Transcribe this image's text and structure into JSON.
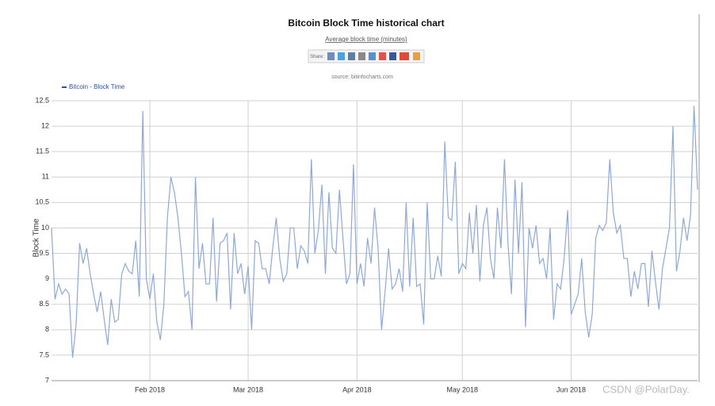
{
  "chart_data": {
    "type": "line",
    "title": "Bitcoin Block Time historical chart",
    "subtitle": "Average block time (minutes)",
    "share_label": "Share:",
    "source": "source: bitinfocharts.com",
    "ylabel": "Block Time",
    "watermark": "CSDN @PolarDay.",
    "categories": [
      null,
      null,
      null,
      null,
      null,
      null,
      null,
      null,
      null,
      null,
      null,
      null,
      null,
      null,
      null,
      null,
      null,
      null,
      null,
      null,
      null,
      null,
      null,
      null,
      null,
      null,
      null,
      null,
      "Feb 2018",
      null,
      null,
      null,
      null,
      null,
      null,
      null,
      null,
      null,
      null,
      null,
      null,
      null,
      null,
      null,
      null,
      null,
      null,
      null,
      null,
      null,
      null,
      null,
      null,
      null,
      null,
      null,
      "Mar 2018",
      null,
      null,
      null,
      null,
      null,
      null,
      null,
      null,
      null,
      null,
      null,
      null,
      null,
      null,
      null,
      null,
      null,
      null,
      null,
      null,
      null,
      null,
      null,
      null,
      null,
      null,
      null,
      null,
      null,
      null,
      "Apr 2018",
      null,
      null,
      null,
      null,
      null,
      null,
      null,
      null,
      null,
      null,
      null,
      null,
      null,
      null,
      null,
      null,
      null,
      null,
      null,
      null,
      null,
      null,
      null,
      null,
      null,
      null,
      null,
      null,
      null,
      "May 2018",
      null,
      null,
      null,
      null,
      null,
      null,
      null,
      null,
      null,
      null,
      null,
      null,
      null,
      null,
      null,
      null,
      null,
      null,
      null,
      null,
      null,
      null,
      null,
      null,
      null,
      null,
      null,
      null,
      null,
      null,
      "Jun 2018",
      null,
      null,
      null,
      null,
      null,
      null,
      null,
      null,
      null,
      null,
      null,
      null,
      null,
      null,
      null,
      null,
      null,
      null,
      null,
      null,
      null,
      null,
      null,
      null,
      null,
      null,
      null,
      null,
      null,
      null,
      null,
      null,
      null,
      null,
      null,
      null
    ],
    "series": [
      {
        "name": "Bitcoin - Block Time",
        "color": "#8fa8d6",
        "values": [
          10.0,
          8.6,
          8.9,
          8.7,
          8.8,
          8.7,
          7.45,
          8.1,
          9.7,
          9.3,
          9.6,
          9.1,
          8.7,
          8.35,
          8.75,
          8.2,
          7.7,
          8.6,
          8.15,
          8.2,
          9.1,
          9.3,
          9.15,
          9.1,
          9.75,
          8.65,
          12.3,
          9.0,
          8.6,
          9.1,
          8.15,
          7.8,
          8.5,
          10.2,
          11.0,
          10.7,
          10.2,
          9.5,
          8.65,
          8.75,
          8.0,
          11.0,
          9.2,
          9.7,
          8.9,
          8.9,
          10.2,
          8.55,
          9.7,
          9.75,
          9.9,
          8.4,
          9.9,
          9.1,
          9.3,
          8.7,
          9.25,
          8.0,
          9.75,
          9.7,
          9.2,
          9.2,
          8.9,
          9.6,
          10.2,
          9.4,
          8.95,
          9.1,
          10.0,
          10.0,
          9.2,
          9.65,
          9.55,
          9.3,
          11.35,
          9.5,
          9.95,
          10.85,
          9.1,
          10.7,
          9.6,
          9.5,
          10.75,
          9.8,
          8.9,
          9.1,
          11.25,
          8.9,
          9.3,
          8.85,
          9.8,
          9.3,
          10.4,
          9.6,
          8.0,
          8.75,
          9.6,
          8.8,
          8.9,
          9.2,
          8.75,
          10.5,
          8.85,
          10.2,
          8.85,
          8.9,
          8.1,
          10.5,
          9.0,
          9.0,
          9.45,
          9.05,
          11.7,
          10.2,
          10.15,
          11.3,
          9.1,
          9.3,
          9.2,
          10.3,
          9.5,
          10.45,
          8.95,
          10.05,
          10.4,
          9.4,
          9.0,
          10.4,
          9.6,
          11.35,
          9.7,
          8.7,
          10.95,
          9.5,
          10.9,
          8.05,
          10.0,
          9.6,
          10.05,
          9.3,
          9.4,
          9.0,
          10.0,
          8.2,
          8.9,
          8.8,
          9.4,
          10.35,
          8.3,
          8.5,
          8.7,
          9.4,
          8.35,
          7.85,
          8.3,
          9.8,
          10.05,
          9.95,
          10.1,
          11.35,
          10.3,
          9.9,
          10.05,
          9.4,
          9.4,
          8.65,
          9.15,
          8.8,
          9.3,
          9.3,
          8.45,
          9.55,
          8.95,
          8.4,
          9.2,
          9.6,
          10.0,
          12.0,
          9.15,
          9.55,
          10.2,
          9.75,
          10.25,
          12.4,
          10.75
        ]
      }
    ],
    "ylim": [
      7,
      12.5
    ],
    "yticks": [
      7,
      7.5,
      8,
      8.5,
      9,
      9.5,
      10,
      10.5,
      11,
      11.5,
      12,
      12.5
    ],
    "grid": true
  }
}
